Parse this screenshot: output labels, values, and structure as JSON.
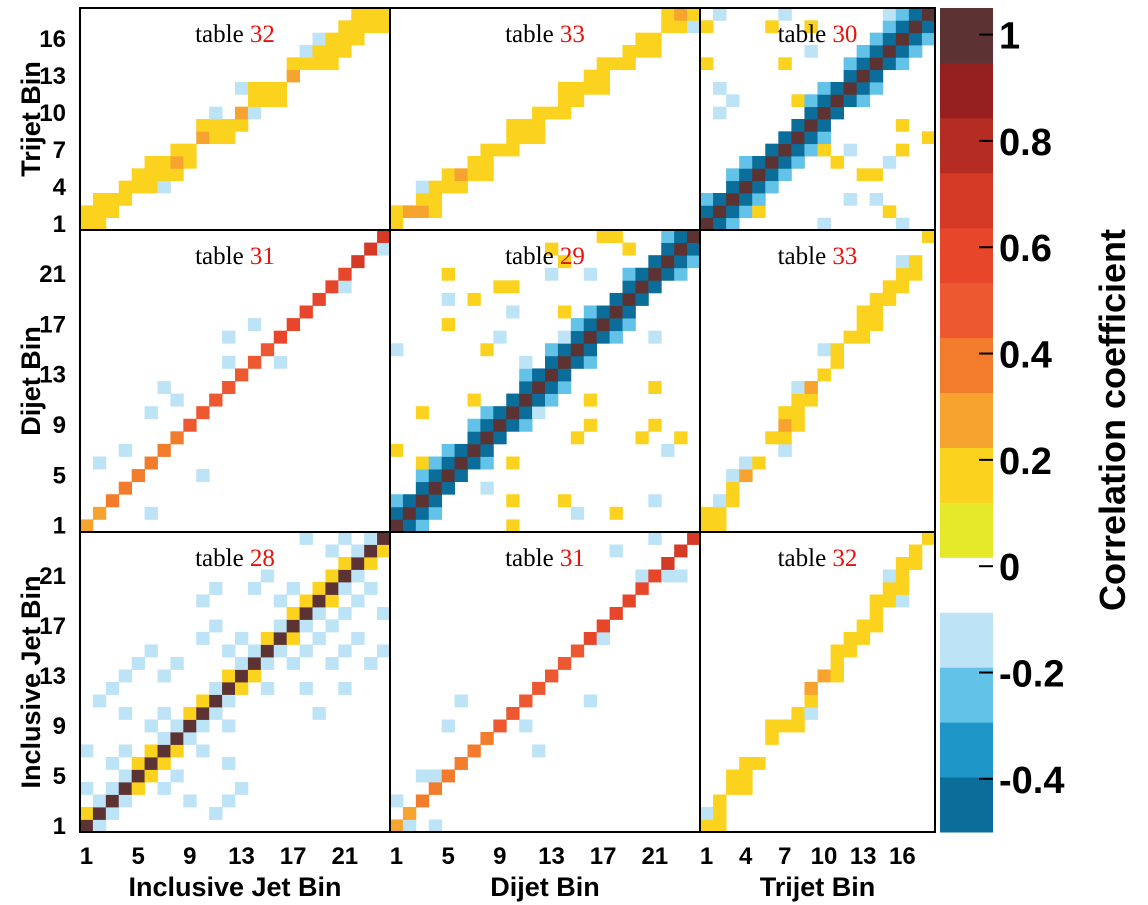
{
  "chart_data": {
    "type": "heatmap",
    "title": "",
    "colorbar": {
      "label": "Correlation coefficient",
      "ticks": [
        1,
        0.8,
        0.6,
        0.4,
        0.2,
        0,
        -0.2,
        -0.4
      ],
      "tick_labels": [
        "1",
        "0.8",
        "0.6",
        "0.4",
        "0.2",
        "0",
        "-0.2",
        "-0.4"
      ],
      "range": [
        -0.5,
        1.05
      ],
      "colors_bottom_to_top": [
        "#0a6d9a",
        "#1e96c8",
        "#62c2e8",
        "#bde3f6",
        "#ffffff",
        "#e6e82a",
        "#fbd21e",
        "#f7a330",
        "#f27c2c",
        "#ee5830",
        "#e8462a",
        "#d43a26",
        "#b52c22",
        "#96201f",
        "#5c3332"
      ]
    },
    "axes": {
      "inclusive": {
        "label": "Inclusive Jet Bin",
        "nbins": 24,
        "ticks": [
          1,
          5,
          9,
          13,
          17,
          21
        ],
        "tick_labels": [
          "1",
          "5",
          "9",
          "13",
          "17",
          "21"
        ]
      },
      "dijet": {
        "label": "Dijet Bin",
        "nbins": 24,
        "ticks": [
          1,
          5,
          9,
          13,
          17,
          21
        ],
        "tick_labels": [
          "1",
          "5",
          "9",
          "13",
          "17",
          "21"
        ]
      },
      "trijet": {
        "label": "Trijet Bin",
        "nbins": 18,
        "ticks": [
          1,
          4,
          7,
          10,
          13,
          16
        ],
        "tick_labels": [
          "1",
          "4",
          "7",
          "10",
          "13",
          "16"
        ]
      }
    },
    "panels": [
      {
        "row": 0,
        "col": 0,
        "label_word": "table",
        "label_num": "32",
        "xaxis": "inclusive",
        "yaxis": "trijet"
      },
      {
        "row": 0,
        "col": 1,
        "label_word": "table",
        "label_num": "33",
        "xaxis": "dijet",
        "yaxis": "trijet"
      },
      {
        "row": 0,
        "col": 2,
        "label_word": "table",
        "label_num": "30",
        "xaxis": "trijet",
        "yaxis": "trijet"
      },
      {
        "row": 1,
        "col": 0,
        "label_word": "table",
        "label_num": "31",
        "xaxis": "inclusive",
        "yaxis": "dijet"
      },
      {
        "row": 1,
        "col": 1,
        "label_word": "table",
        "label_num": "29",
        "xaxis": "dijet",
        "yaxis": "dijet"
      },
      {
        "row": 1,
        "col": 2,
        "label_word": "table",
        "label_num": "33",
        "xaxis": "trijet",
        "yaxis": "dijet"
      },
      {
        "row": 2,
        "col": 0,
        "label_word": "table",
        "label_num": "28",
        "xaxis": "inclusive",
        "yaxis": "inclusive"
      },
      {
        "row": 2,
        "col": 1,
        "label_word": "table",
        "label_num": "31",
        "xaxis": "dijet",
        "yaxis": "inclusive"
      },
      {
        "row": 2,
        "col": 2,
        "label_word": "table",
        "label_num": "32",
        "xaxis": "trijet",
        "yaxis": "inclusive"
      }
    ]
  }
}
